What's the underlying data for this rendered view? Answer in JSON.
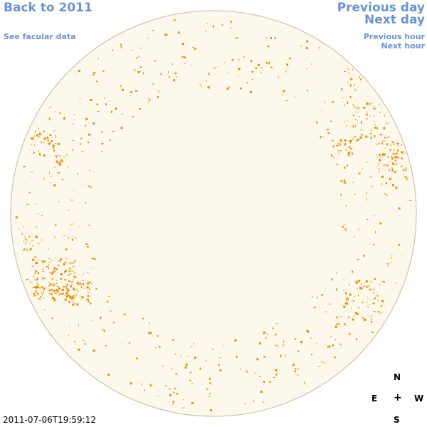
{
  "nav": {
    "back_label": "Back to 2011",
    "facular_label": "See facular data",
    "prev_day_label": "Previous day",
    "next_day_label": "Next day",
    "prev_hour_label": "Previous hour",
    "next_hour_label": "Next hour"
  },
  "compass": {
    "north": "N",
    "east": "E",
    "center": "+",
    "west": "W",
    "south": "S"
  },
  "timestamp": "2011-07-06T19:59:12",
  "colors": {
    "disk_fill": "#fdf8ec",
    "disk_edge": "#c8b89a",
    "feature": "#f08c00",
    "link": "#6a93d8"
  }
}
